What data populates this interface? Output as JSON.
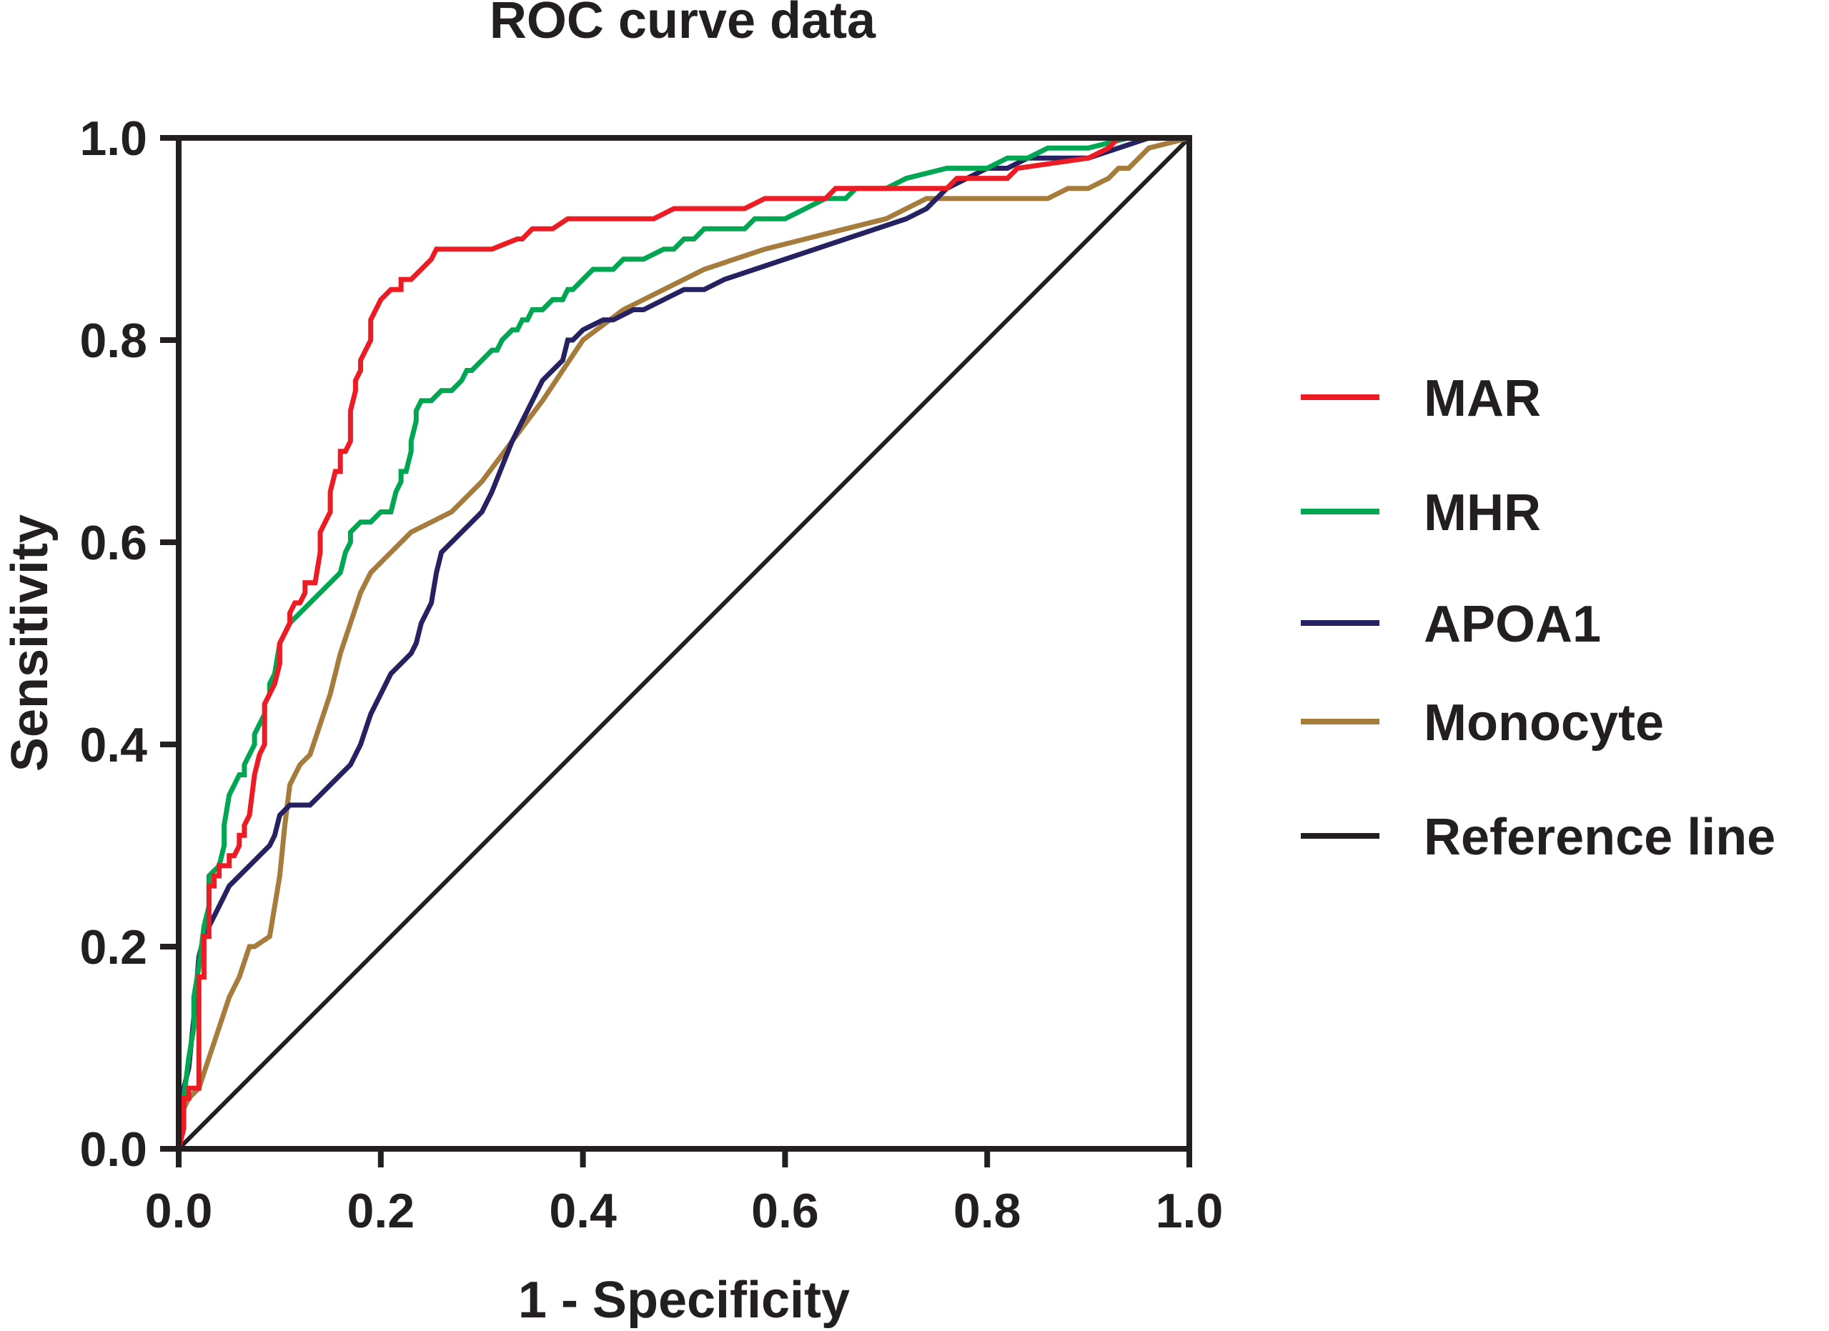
{
  "chart_data": {
    "type": "line",
    "title": "ROC curve data",
    "xlabel": "1 - Specificity",
    "ylabel": "Sensitivity",
    "xlim": [
      0.0,
      1.0
    ],
    "ylim": [
      0.0,
      1.0
    ],
    "xticks": [
      "0.0",
      "0.2",
      "0.4",
      "0.6",
      "0.8",
      "1.0"
    ],
    "yticks": [
      "0.0",
      "0.2",
      "0.4",
      "0.6",
      "0.8",
      "1.0"
    ],
    "grid": false,
    "legend_position": "right",
    "series": [
      {
        "name": "MAR",
        "color": "#ed1c24",
        "x": [
          0,
          0.005,
          0.005,
          0.01,
          0.01,
          0.02,
          0.02,
          0.025,
          0.025,
          0.03,
          0.03,
          0.035,
          0.035,
          0.04,
          0.04,
          0.05,
          0.05,
          0.055,
          0.06,
          0.06,
          0.065,
          0.065,
          0.07,
          0.075,
          0.08,
          0.085,
          0.085,
          0.09,
          0.095,
          0.1,
          0.1,
          0.105,
          0.11,
          0.11,
          0.115,
          0.12,
          0.125,
          0.125,
          0.135,
          0.14,
          0.14,
          0.145,
          0.15,
          0.15,
          0.155,
          0.16,
          0.16,
          0.165,
          0.17,
          0.17,
          0.175,
          0.175,
          0.18,
          0.18,
          0.185,
          0.19,
          0.19,
          0.2,
          0.21,
          0.22,
          0.22,
          0.23,
          0.24,
          0.24,
          0.25,
          0.255,
          0.26,
          0.26,
          0.31,
          0.335,
          0.34,
          0.35,
          0.365,
          0.37,
          0.385,
          0.395,
          0.4,
          0.47,
          0.49,
          0.5,
          0.55,
          0.56,
          0.58,
          0.6,
          0.64,
          0.65,
          0.7,
          0.76,
          0.77,
          0.82,
          0.83,
          0.9,
          0.92,
          0.93,
          0.95,
          1.0
        ],
        "y": [
          0,
          0.02,
          0.05,
          0.05,
          0.06,
          0.06,
          0.17,
          0.17,
          0.21,
          0.21,
          0.26,
          0.26,
          0.27,
          0.27,
          0.28,
          0.28,
          0.29,
          0.29,
          0.3,
          0.31,
          0.31,
          0.32,
          0.33,
          0.37,
          0.39,
          0.4,
          0.44,
          0.45,
          0.46,
          0.48,
          0.5,
          0.51,
          0.52,
          0.53,
          0.54,
          0.54,
          0.55,
          0.56,
          0.56,
          0.59,
          0.61,
          0.62,
          0.63,
          0.65,
          0.67,
          0.67,
          0.69,
          0.69,
          0.7,
          0.73,
          0.75,
          0.76,
          0.77,
          0.78,
          0.79,
          0.8,
          0.82,
          0.84,
          0.85,
          0.85,
          0.86,
          0.86,
          0.87,
          0.87,
          0.88,
          0.89,
          0.89,
          0.89,
          0.89,
          0.9,
          0.9,
          0.91,
          0.91,
          0.91,
          0.92,
          0.92,
          0.92,
          0.92,
          0.93,
          0.93,
          0.93,
          0.93,
          0.94,
          0.94,
          0.94,
          0.95,
          0.95,
          0.95,
          0.96,
          0.96,
          0.97,
          0.98,
          0.99,
          1.0,
          1.0,
          1.0
        ]
      },
      {
        "name": "MHR",
        "color": "#00a651",
        "x": [
          0,
          0.005,
          0.01,
          0.015,
          0.015,
          0.02,
          0.025,
          0.03,
          0.03,
          0.04,
          0.045,
          0.045,
          0.05,
          0.055,
          0.06,
          0.065,
          0.065,
          0.07,
          0.075,
          0.075,
          0.08,
          0.085,
          0.085,
          0.09,
          0.09,
          0.095,
          0.1,
          0.11,
          0.12,
          0.13,
          0.14,
          0.15,
          0.16,
          0.165,
          0.17,
          0.17,
          0.18,
          0.19,
          0.2,
          0.21,
          0.215,
          0.22,
          0.22,
          0.225,
          0.23,
          0.23,
          0.235,
          0.235,
          0.24,
          0.245,
          0.25,
          0.26,
          0.27,
          0.28,
          0.285,
          0.29,
          0.3,
          0.31,
          0.315,
          0.32,
          0.33,
          0.335,
          0.34,
          0.345,
          0.35,
          0.36,
          0.37,
          0.375,
          0.38,
          0.385,
          0.39,
          0.4,
          0.41,
          0.42,
          0.43,
          0.44,
          0.46,
          0.48,
          0.49,
          0.5,
          0.51,
          0.52,
          0.56,
          0.57,
          0.6,
          0.62,
          0.64,
          0.66,
          0.67,
          0.7,
          0.72,
          0.76,
          0.8,
          0.82,
          0.84,
          0.86,
          0.9,
          0.94,
          0.96,
          1.0
        ],
        "y": [
          0,
          0.05,
          0.09,
          0.12,
          0.15,
          0.18,
          0.22,
          0.24,
          0.27,
          0.28,
          0.3,
          0.32,
          0.35,
          0.36,
          0.37,
          0.37,
          0.38,
          0.39,
          0.4,
          0.41,
          0.42,
          0.43,
          0.44,
          0.45,
          0.46,
          0.47,
          0.5,
          0.52,
          0.53,
          0.54,
          0.55,
          0.56,
          0.57,
          0.59,
          0.6,
          0.61,
          0.62,
          0.62,
          0.63,
          0.63,
          0.65,
          0.66,
          0.67,
          0.67,
          0.69,
          0.7,
          0.72,
          0.73,
          0.74,
          0.74,
          0.74,
          0.75,
          0.75,
          0.76,
          0.77,
          0.77,
          0.78,
          0.79,
          0.79,
          0.8,
          0.81,
          0.81,
          0.82,
          0.82,
          0.83,
          0.83,
          0.84,
          0.84,
          0.84,
          0.85,
          0.85,
          0.86,
          0.87,
          0.87,
          0.87,
          0.88,
          0.88,
          0.89,
          0.89,
          0.9,
          0.9,
          0.91,
          0.91,
          0.92,
          0.92,
          0.93,
          0.94,
          0.94,
          0.95,
          0.95,
          0.96,
          0.97,
          0.97,
          0.98,
          0.98,
          0.99,
          0.99,
          1.0,
          1.0,
          1.0
        ]
      },
      {
        "name": "APOA1",
        "color": "#262262",
        "x": [
          0,
          0.005,
          0.01,
          0.015,
          0.02,
          0.025,
          0.03,
          0.04,
          0.05,
          0.06,
          0.07,
          0.08,
          0.09,
          0.095,
          0.1,
          0.11,
          0.12,
          0.13,
          0.14,
          0.15,
          0.16,
          0.17,
          0.18,
          0.19,
          0.2,
          0.21,
          0.22,
          0.23,
          0.235,
          0.24,
          0.25,
          0.255,
          0.26,
          0.27,
          0.28,
          0.29,
          0.3,
          0.31,
          0.33,
          0.35,
          0.36,
          0.38,
          0.385,
          0.39,
          0.4,
          0.42,
          0.43,
          0.45,
          0.46,
          0.5,
          0.52,
          0.54,
          0.57,
          0.6,
          0.63,
          0.66,
          0.69,
          0.72,
          0.74,
          0.76,
          0.78,
          0.8,
          0.82,
          0.84,
          0.86,
          0.88,
          0.9,
          0.93,
          0.96,
          1.0
        ],
        "y": [
          0,
          0.06,
          0.08,
          0.13,
          0.19,
          0.21,
          0.22,
          0.24,
          0.26,
          0.27,
          0.28,
          0.29,
          0.3,
          0.31,
          0.33,
          0.34,
          0.34,
          0.34,
          0.35,
          0.36,
          0.37,
          0.38,
          0.4,
          0.43,
          0.45,
          0.47,
          0.48,
          0.49,
          0.5,
          0.52,
          0.54,
          0.57,
          0.59,
          0.6,
          0.61,
          0.62,
          0.63,
          0.65,
          0.7,
          0.74,
          0.76,
          0.78,
          0.8,
          0.8,
          0.81,
          0.82,
          0.82,
          0.83,
          0.83,
          0.85,
          0.85,
          0.86,
          0.87,
          0.88,
          0.89,
          0.9,
          0.91,
          0.92,
          0.93,
          0.95,
          0.96,
          0.97,
          0.97,
          0.98,
          0.98,
          0.98,
          0.98,
          0.99,
          1.0,
          1.0
        ]
      },
      {
        "name": "Monocyte",
        "color": "#a67c3d",
        "x": [
          0,
          0.005,
          0.01,
          0.02,
          0.03,
          0.04,
          0.05,
          0.06,
          0.07,
          0.075,
          0.09,
          0.1,
          0.105,
          0.11,
          0.12,
          0.13,
          0.14,
          0.15,
          0.16,
          0.17,
          0.18,
          0.19,
          0.2,
          0.22,
          0.23,
          0.25,
          0.27,
          0.3,
          0.33,
          0.36,
          0.4,
          0.44,
          0.48,
          0.52,
          0.55,
          0.58,
          0.62,
          0.66,
          0.7,
          0.74,
          0.78,
          0.82,
          0.84,
          0.86,
          0.88,
          0.9,
          0.92,
          0.93,
          0.94,
          0.95,
          0.96,
          1.0
        ],
        "y": [
          0,
          0.04,
          0.05,
          0.06,
          0.09,
          0.12,
          0.15,
          0.17,
          0.2,
          0.2,
          0.21,
          0.27,
          0.32,
          0.36,
          0.38,
          0.39,
          0.42,
          0.45,
          0.49,
          0.52,
          0.55,
          0.57,
          0.58,
          0.6,
          0.61,
          0.62,
          0.63,
          0.66,
          0.7,
          0.74,
          0.8,
          0.83,
          0.85,
          0.87,
          0.88,
          0.89,
          0.9,
          0.91,
          0.92,
          0.94,
          0.94,
          0.94,
          0.94,
          0.94,
          0.95,
          0.95,
          0.96,
          0.97,
          0.97,
          0.98,
          0.99,
          1.0
        ]
      },
      {
        "name": "Reference line",
        "color": "#231f20",
        "x": [
          0,
          1.0
        ],
        "y": [
          0,
          1.0
        ]
      }
    ]
  }
}
